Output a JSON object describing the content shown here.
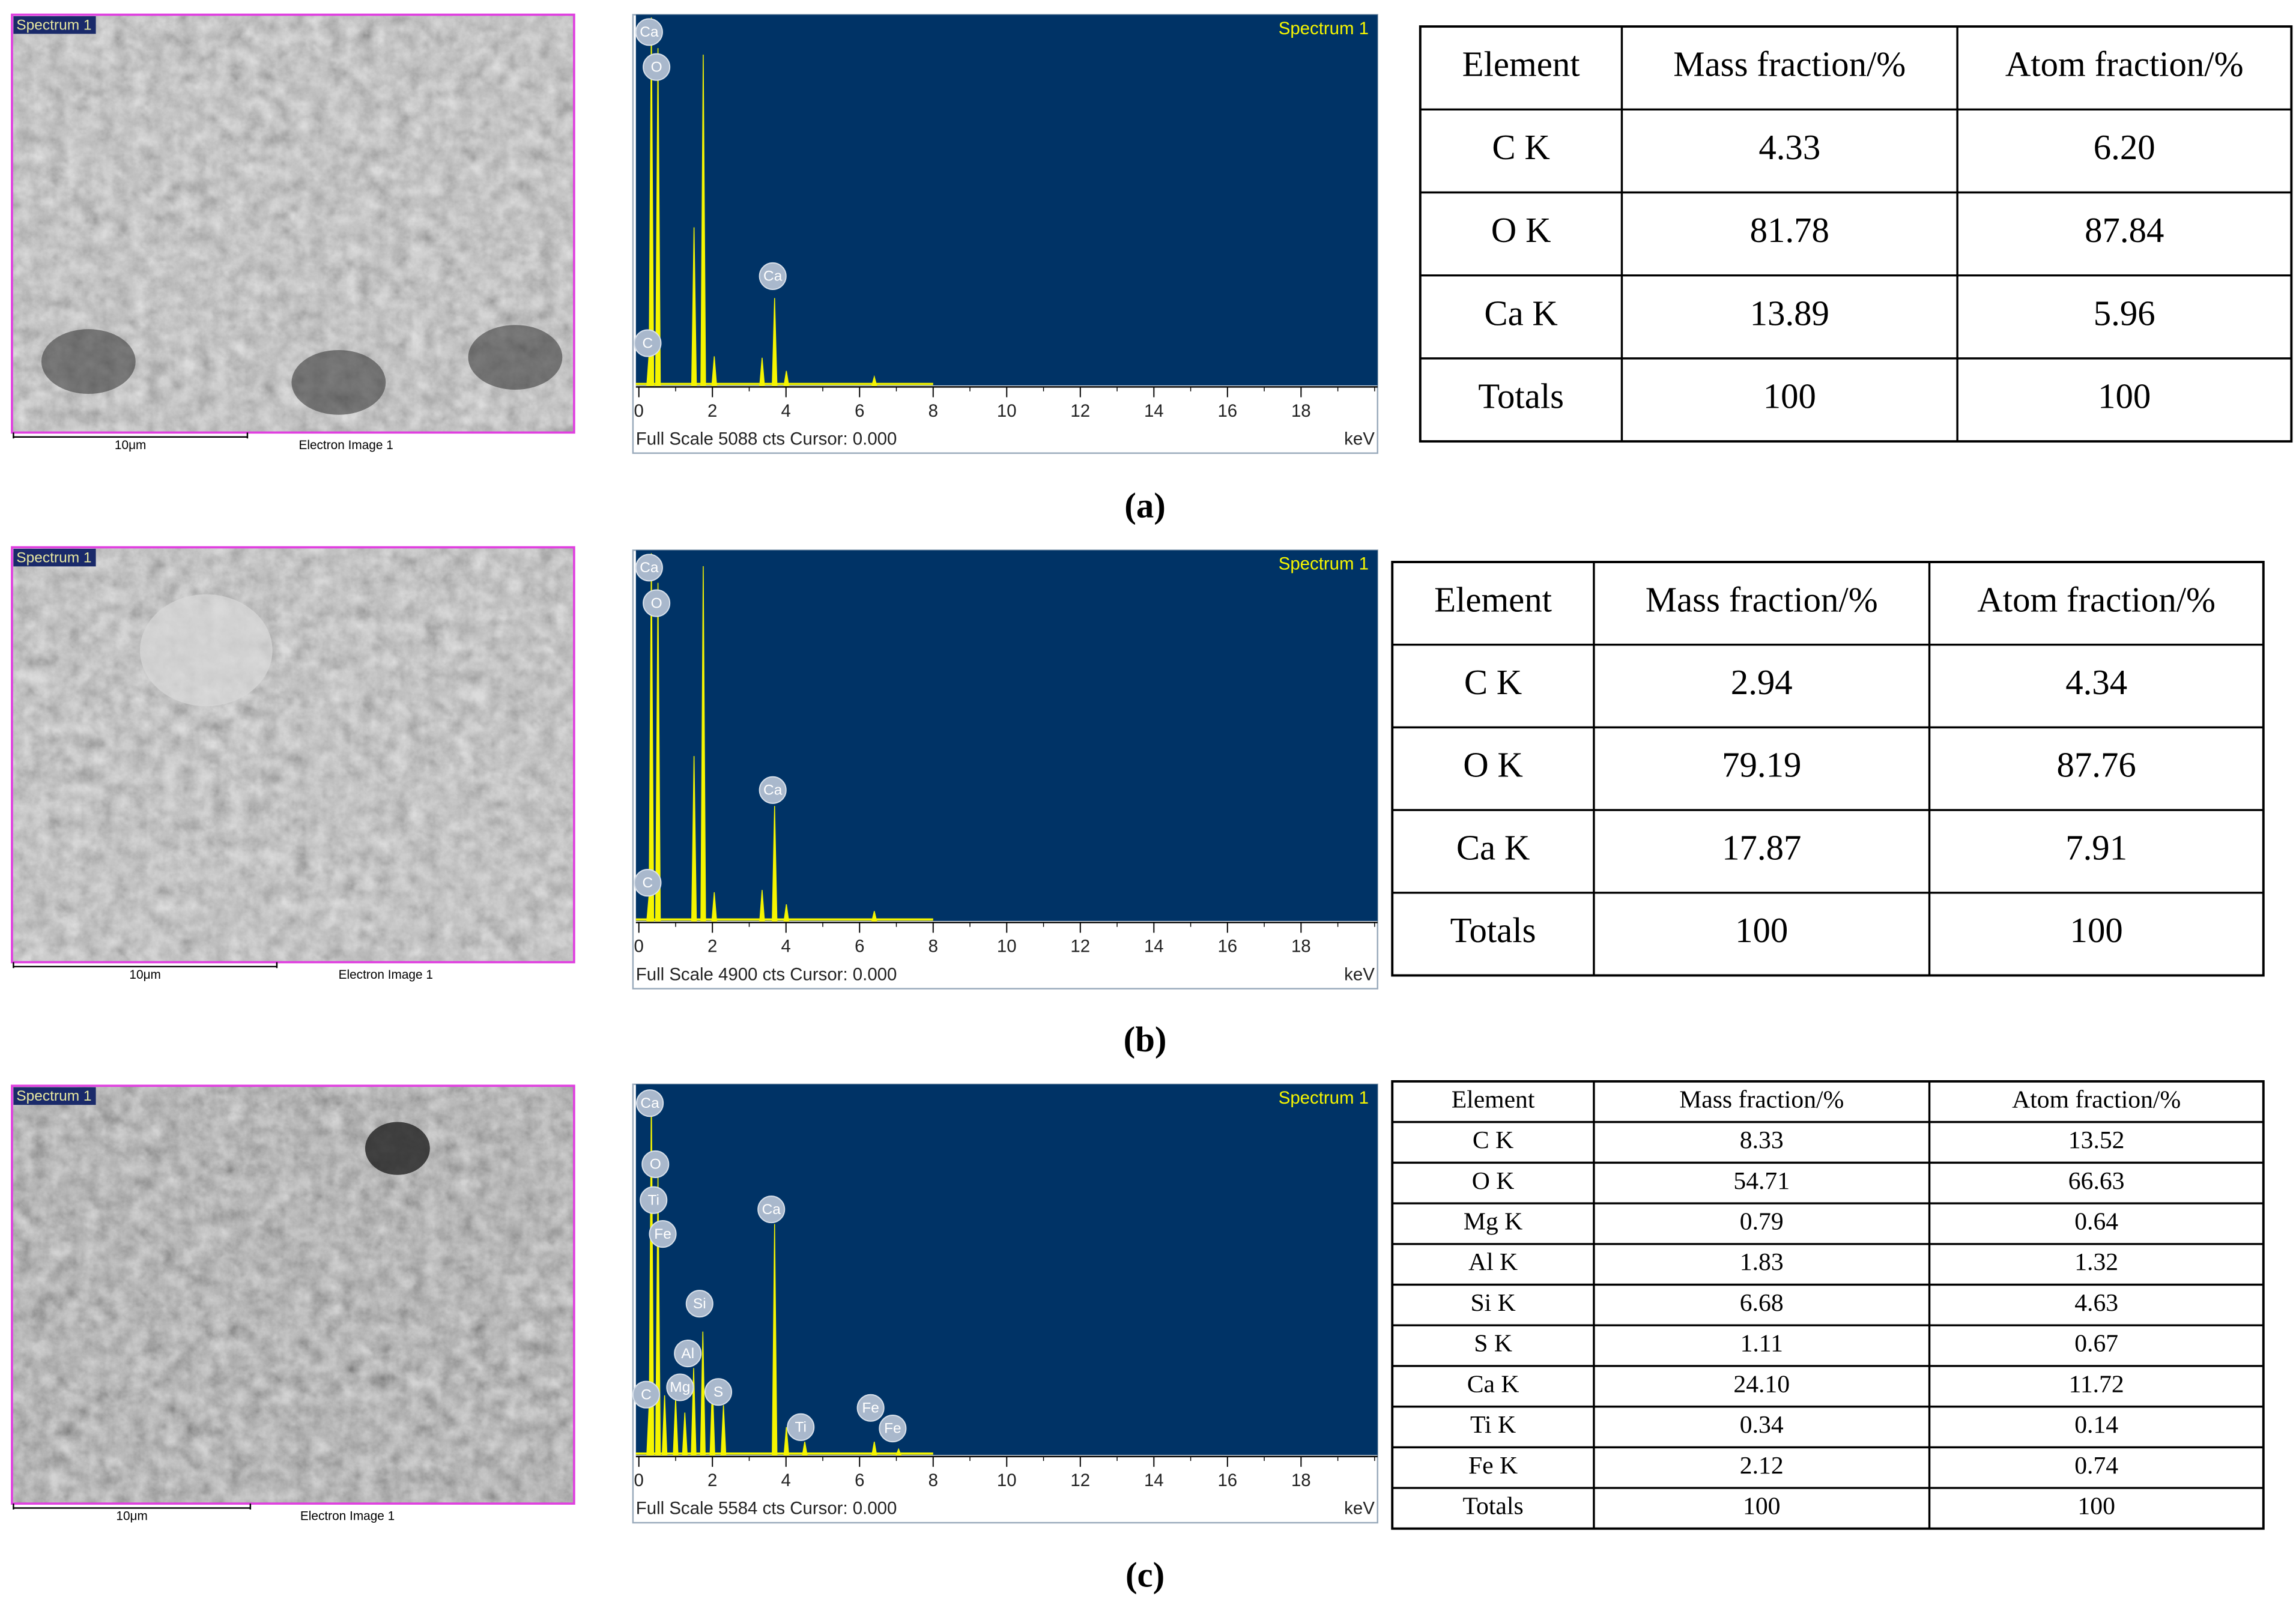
{
  "panels": [
    {
      "caption": "(a)",
      "sem": {
        "tag": "Spectrum 1",
        "scale": "10μm",
        "label": "Electron Image 1"
      },
      "chart_data": {
        "type": "spectrum",
        "title": "Spectrum 1",
        "footer": "Full Scale 5088 cts Cursor: 0.000",
        "x_unit": "keV",
        "color": "#f5f500",
        "background": "#003366",
        "xlim": [
          0,
          20
        ],
        "xticks": [
          0,
          2,
          4,
          6,
          8,
          10,
          12,
          14,
          16,
          18
        ],
        "ylim": [
          0,
          5088
        ],
        "peaks": [
          {
            "kev": 0.28,
            "counts": 440
          },
          {
            "kev": 0.34,
            "counts": 5050
          },
          {
            "kev": 0.52,
            "counts": 4630
          },
          {
            "kev": 1.5,
            "counts": 2170
          },
          {
            "kev": 1.75,
            "counts": 4540
          },
          {
            "kev": 2.05,
            "counts": 400
          },
          {
            "kev": 3.35,
            "counts": 380
          },
          {
            "kev": 3.69,
            "counts": 1200
          },
          {
            "kev": 4.01,
            "counts": 200
          },
          {
            "kev": 6.4,
            "counts": 120
          }
        ],
        "labels": [
          {
            "text": "Ca",
            "kev": 0.28,
            "counts": 4850
          },
          {
            "text": "O",
            "kev": 0.48,
            "counts": 4370
          },
          {
            "text": "C",
            "kev": 0.24,
            "counts": 580
          },
          {
            "text": "Ca",
            "kev": 3.64,
            "counts": 1500
          }
        ]
      },
      "table": {
        "header": [
          "Element",
          "Mass fraction/%",
          "Atom fraction/%"
        ],
        "rows": [
          [
            "C K",
            "4.33",
            "6.20"
          ],
          [
            "O K",
            "81.78",
            "87.84"
          ],
          [
            "Ca K",
            "13.89",
            "5.96"
          ],
          [
            "Totals",
            "100",
            "100"
          ]
        ]
      }
    },
    {
      "caption": "(b)",
      "sem": {
        "tag": "Spectrum 1",
        "scale": "10μm",
        "label": "Electron Image 1"
      },
      "chart_data": {
        "type": "spectrum",
        "title": "Spectrum 1",
        "footer": "Full Scale 4900 cts Cursor: 0.000",
        "x_unit": "keV",
        "color": "#f5f500",
        "background": "#003366",
        "xlim": [
          0,
          20
        ],
        "xticks": [
          0,
          2,
          4,
          6,
          8,
          10,
          12,
          14,
          16,
          18
        ],
        "ylim": [
          0,
          4900
        ],
        "peaks": [
          {
            "kev": 0.28,
            "counts": 350
          },
          {
            "kev": 0.34,
            "counts": 4860
          },
          {
            "kev": 0.52,
            "counts": 4470
          },
          {
            "kev": 1.5,
            "counts": 2180
          },
          {
            "kev": 1.75,
            "counts": 4690
          },
          {
            "kev": 2.05,
            "counts": 380
          },
          {
            "kev": 3.35,
            "counts": 410
          },
          {
            "kev": 3.69,
            "counts": 1520
          },
          {
            "kev": 4.01,
            "counts": 220
          },
          {
            "kev": 6.4,
            "counts": 130
          }
        ],
        "labels": [
          {
            "text": "Ca",
            "kev": 0.28,
            "counts": 4670
          },
          {
            "text": "O",
            "kev": 0.48,
            "counts": 4200
          },
          {
            "text": "C",
            "kev": 0.24,
            "counts": 505
          },
          {
            "text": "Ca",
            "kev": 3.64,
            "counts": 1730
          }
        ]
      },
      "table": {
        "header": [
          "Element",
          "Mass fraction/%",
          "Atom fraction/%"
        ],
        "rows": [
          [
            "C K",
            "2.94",
            "4.34"
          ],
          [
            "O K",
            "79.19",
            "87.76"
          ],
          [
            "Ca K",
            "17.87",
            "7.91"
          ],
          [
            "Totals",
            "100",
            "100"
          ]
        ]
      }
    },
    {
      "caption": "(c)",
      "sem": {
        "tag": "Spectrum 1",
        "scale": "10μm",
        "label": "Electron Image 1"
      },
      "chart_data": {
        "type": "spectrum",
        "title": "Spectrum 1",
        "footer": "Full Scale 5584 cts Cursor: 0.000",
        "x_unit": "keV",
        "color": "#f5f500",
        "background": "#003366",
        "xlim": [
          0,
          20
        ],
        "xticks": [
          0,
          2,
          4,
          6,
          8,
          10,
          12,
          14,
          16,
          18
        ],
        "ylim": [
          0,
          5584
        ],
        "peaks": [
          {
            "kev": 0.28,
            "counts": 750
          },
          {
            "kev": 0.34,
            "counts": 5500
          },
          {
            "kev": 0.52,
            "counts": 4190
          },
          {
            "kev": 0.7,
            "counts": 900
          },
          {
            "kev": 1.0,
            "counts": 860
          },
          {
            "kev": 1.25,
            "counts": 640
          },
          {
            "kev": 1.49,
            "counts": 1310
          },
          {
            "kev": 1.74,
            "counts": 1860
          },
          {
            "kev": 2.0,
            "counts": 1080
          },
          {
            "kev": 2.3,
            "counts": 750
          },
          {
            "kev": 3.69,
            "counts": 3480
          },
          {
            "kev": 4.01,
            "counts": 420
          },
          {
            "kev": 4.51,
            "counts": 200
          },
          {
            "kev": 6.4,
            "counts": 200
          },
          {
            "kev": 7.06,
            "counts": 90
          }
        ],
        "labels": [
          {
            "text": "Ca",
            "kev": 0.3,
            "counts": 5300
          },
          {
            "text": "O",
            "kev": 0.45,
            "counts": 4380
          },
          {
            "text": "Ti",
            "kev": 0.4,
            "counts": 3840
          },
          {
            "text": "Fe",
            "kev": 0.65,
            "counts": 3330
          },
          {
            "text": "Si",
            "kev": 1.65,
            "counts": 2280
          },
          {
            "text": "Al",
            "kev": 1.33,
            "counts": 1530
          },
          {
            "text": "Mg",
            "kev": 1.12,
            "counts": 1020
          },
          {
            "text": "C",
            "kev": 0.2,
            "counts": 910
          },
          {
            "text": "S",
            "kev": 2.16,
            "counts": 950
          },
          {
            "text": "Ca",
            "kev": 3.6,
            "counts": 3700
          },
          {
            "text": "Ti",
            "kev": 4.4,
            "counts": 420
          },
          {
            "text": "Fe",
            "kev": 6.3,
            "counts": 710
          },
          {
            "text": "Fe",
            "kev": 6.9,
            "counts": 400
          }
        ]
      },
      "table": {
        "header": [
          "Element",
          "Mass fraction/%",
          "Atom fraction/%"
        ],
        "rows": [
          [
            "C K",
            "8.33",
            "13.52"
          ],
          [
            "O K",
            "54.71",
            "66.63"
          ],
          [
            "Mg K",
            "0.79",
            "0.64"
          ],
          [
            "Al K",
            "1.83",
            "1.32"
          ],
          [
            "Si K",
            "6.68",
            "4.63"
          ],
          [
            "S K",
            "1.11",
            "0.67"
          ],
          [
            "Ca K",
            "24.10",
            "11.72"
          ],
          [
            "Ti K",
            "0.34",
            "0.14"
          ],
          [
            "Fe K",
            "2.12",
            "0.74"
          ],
          [
            "Totals",
            "100",
            "100"
          ]
        ]
      }
    }
  ]
}
